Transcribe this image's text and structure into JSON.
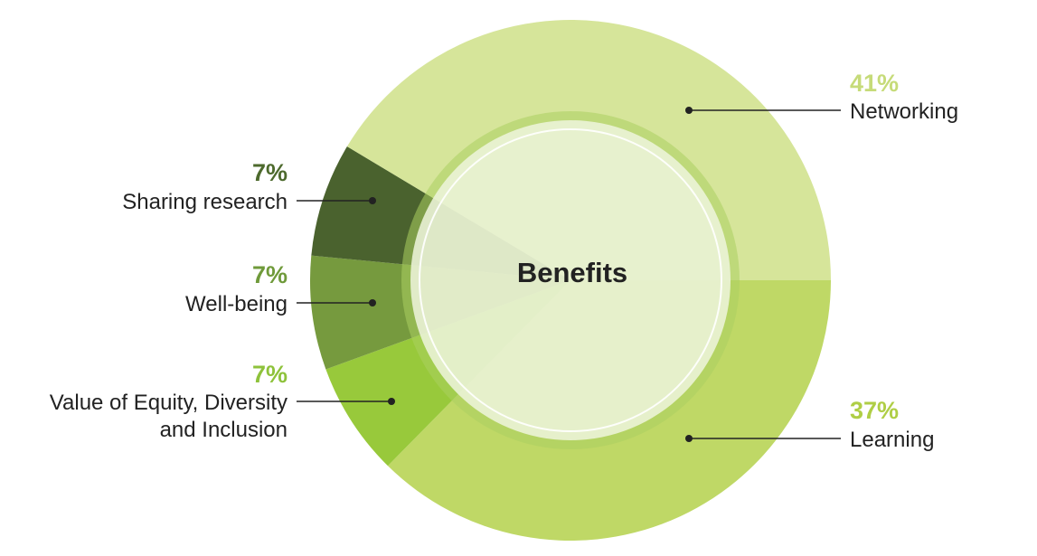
{
  "chart_data": {
    "type": "pie",
    "center_label": "Benefits",
    "slices": [
      {
        "label": "Networking",
        "value": 41,
        "display_value": "41%",
        "color": "#d6e59a",
        "value_color": "#c6db79"
      },
      {
        "label": "Learning",
        "value": 37,
        "display_value": "37%",
        "color": "#bfd866",
        "value_color": "#afce45"
      },
      {
        "label": "Value of Equity, Diversity and Inclusion",
        "label_lines": [
          "Value of Equity, Diversity",
          "and Inclusion"
        ],
        "value": 7,
        "display_value": "7%",
        "color": "#98c93b",
        "value_color": "#8ec23b"
      },
      {
        "label": "Well-being",
        "value": 7,
        "display_value": "7%",
        "color": "#769a3e",
        "value_color": "#6f9a3a"
      },
      {
        "label": "Sharing research",
        "value": 7,
        "display_value": "7%",
        "color": "#4a622e",
        "value_color": "#4d6a2d"
      }
    ],
    "colors": {
      "inner_ring": "#acd061",
      "inner_disc": "#eef4dd",
      "inner_stroke": "#ffffff",
      "text": "#222222",
      "leader": "#222222"
    }
  }
}
